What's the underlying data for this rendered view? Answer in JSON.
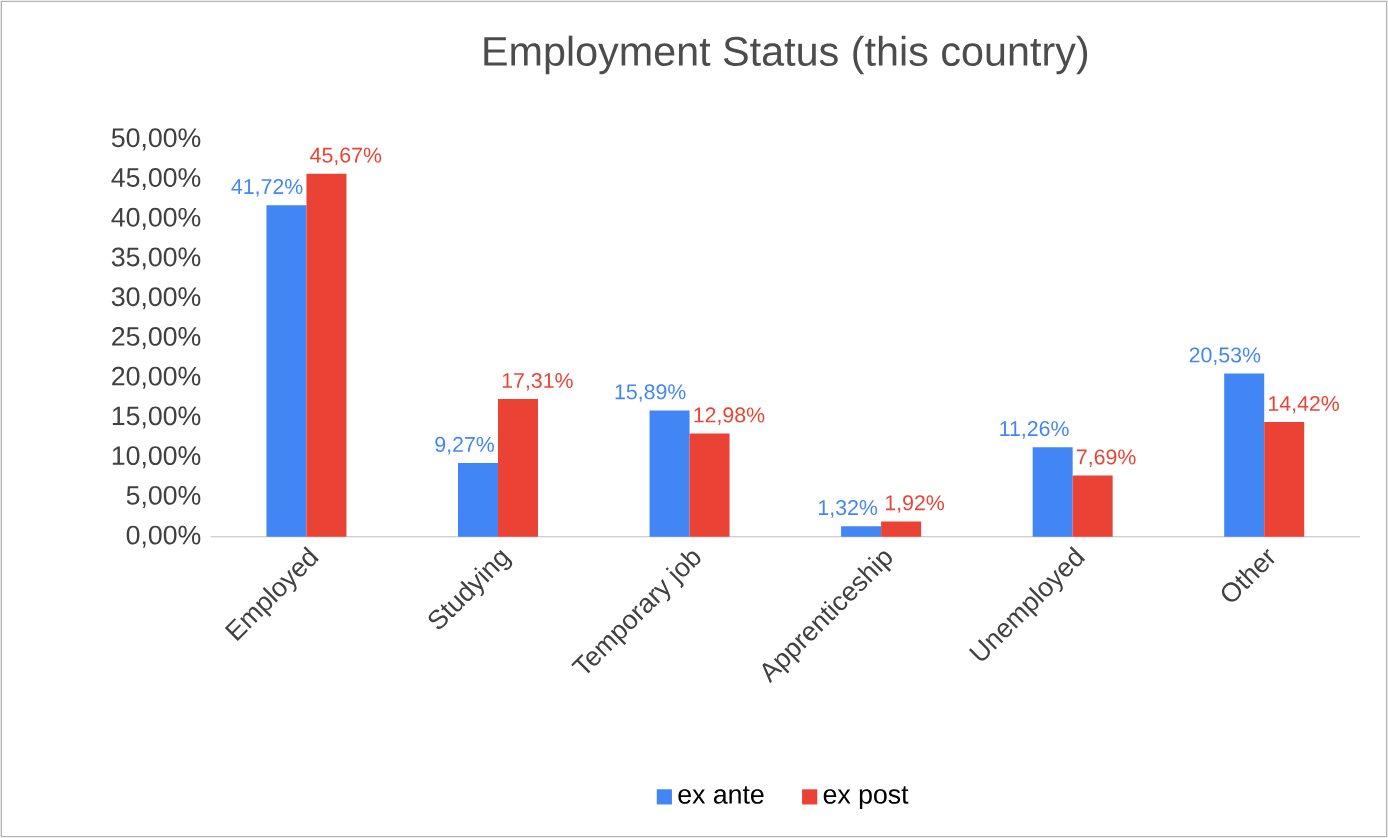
{
  "chart_data": {
    "type": "bar",
    "title": "Employment Status (this country)",
    "categories": [
      "Employed",
      "Studying",
      "Temporary job",
      "Apprenticeship",
      "Unemployed",
      "Other"
    ],
    "series": [
      {
        "name": "ex ante",
        "color": "#4285f4",
        "values": [
          41.72,
          9.27,
          15.89,
          1.32,
          11.26,
          20.53
        ],
        "value_labels": [
          "41,72%",
          "9,27%",
          "15,89%",
          "1,32%",
          "11,26%",
          "20,53%"
        ]
      },
      {
        "name": "ex post",
        "color": "#ea4335",
        "values": [
          45.67,
          17.31,
          12.98,
          1.92,
          7.69,
          14.42
        ],
        "value_labels": [
          "45,67%",
          "17,31%",
          "12,98%",
          "1,92%",
          "7,69%",
          "14,42%"
        ]
      }
    ],
    "ylim": [
      0,
      50
    ],
    "yticks": [
      {
        "value": 0,
        "label": "0,00%"
      },
      {
        "value": 5,
        "label": "5,00%"
      },
      {
        "value": 10,
        "label": "10,00%"
      },
      {
        "value": 15,
        "label": "15,00%"
      },
      {
        "value": 20,
        "label": "20,00%"
      },
      {
        "value": 25,
        "label": "25,00%"
      },
      {
        "value": 30,
        "label": "30,00%"
      },
      {
        "value": 35,
        "label": "35,00%"
      },
      {
        "value": 40,
        "label": "40,00%"
      },
      {
        "value": 45,
        "label": "45,00%"
      },
      {
        "value": 50,
        "label": "50,00%"
      }
    ],
    "legend": "bottom"
  }
}
